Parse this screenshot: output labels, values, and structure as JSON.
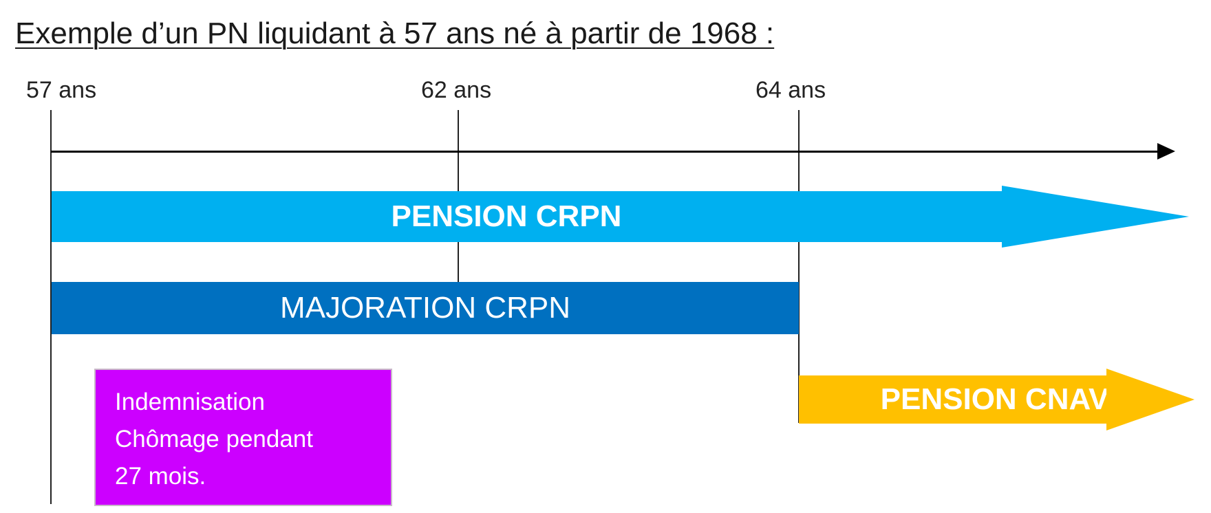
{
  "title": "Exemple d’un PN liquidant à 57 ans né à partir de 1968 :",
  "ages": {
    "a57": "57 ans",
    "a62": "62 ans",
    "a64": "64 ans"
  },
  "bands": {
    "pension_crpn": {
      "label": "PENSION CRPN",
      "color": "#00b0f0"
    },
    "majoration_crpn": {
      "label": "MAJORATION CRPN",
      "color": "#0070c0"
    },
    "pension_cnav": {
      "label": "PENSION CNAV",
      "color": "#ffc000"
    }
  },
  "chomage_box": {
    "lines": [
      "Indemnisation",
      "Chômage pendant",
      "27 mois."
    ],
    "color": "#cc00ff"
  }
}
